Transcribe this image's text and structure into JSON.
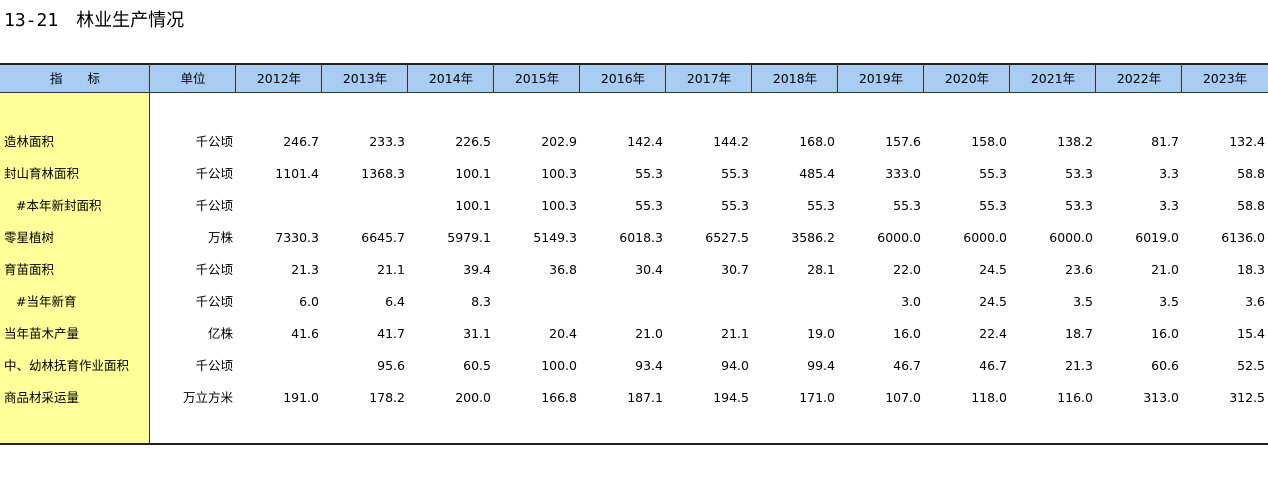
{
  "header": {
    "title": "13-21　林业生产情况"
  },
  "table": {
    "columns": [
      "指　　标",
      "单位",
      "2012年",
      "2013年",
      "2014年",
      "2015年",
      "2016年",
      "2017年",
      "2018年",
      "2019年",
      "2020年",
      "2021年",
      "2022年",
      "2023年"
    ],
    "rows": [
      [
        "造林面积",
        "千公顷",
        "246.7",
        "233.3",
        "226.5",
        "202.9",
        "142.4",
        "144.2",
        "168.0",
        "157.6",
        "158.0",
        "138.2",
        "81.7",
        "132.4"
      ],
      [
        "封山育林面积",
        "千公顷",
        "1101.4",
        "1368.3",
        "100.1",
        "100.3",
        "55.3",
        "55.3",
        "485.4",
        "333.0",
        "55.3",
        "53.3",
        "3.3",
        "58.8"
      ],
      [
        "#本年新封面积",
        "千公顷",
        null,
        null,
        "100.1",
        "100.3",
        "55.3",
        "55.3",
        "55.3",
        "55.3",
        "55.3",
        "53.3",
        "3.3",
        "58.8"
      ],
      [
        "零星植树",
        "万株",
        "7330.3",
        "6645.7",
        "5979.1",
        "5149.3",
        "6018.3",
        "6527.5",
        "3586.2",
        "6000.0",
        "6000.0",
        "6000.0",
        "6019.0",
        "6136.0"
      ],
      [
        "育苗面积",
        "千公顷",
        "21.3",
        "21.1",
        "39.4",
        "36.8",
        "30.4",
        "30.7",
        "28.1",
        "22.0",
        "24.5",
        "23.6",
        "21.0",
        "18.3"
      ],
      [
        "#当年新育",
        "千公顷",
        "6.0",
        "6.4",
        "8.3",
        null,
        null,
        null,
        null,
        "3.0",
        "24.5",
        "3.5",
        "3.5",
        "3.6"
      ],
      [
        "当年苗木产量",
        "亿株",
        "41.6",
        "41.7",
        "31.1",
        "20.4",
        "21.0",
        "21.1",
        "19.0",
        "16.0",
        "22.4",
        "18.7",
        "16.0",
        "15.4"
      ],
      [
        "中、幼林抚育作业面积",
        "千公顷",
        null,
        "95.6",
        "60.5",
        "100.0",
        "93.4",
        "94.0",
        "99.4",
        "46.7",
        "46.7",
        "21.3",
        "60.6",
        "52.5"
      ],
      [
        "商品材采运量",
        "万立方米",
        "191.0",
        "178.2",
        "200.0",
        "166.8",
        "187.1",
        "194.5",
        "171.0",
        "107.0",
        "118.0",
        "116.0",
        "313.0",
        "312.5"
      ]
    ]
  }
}
